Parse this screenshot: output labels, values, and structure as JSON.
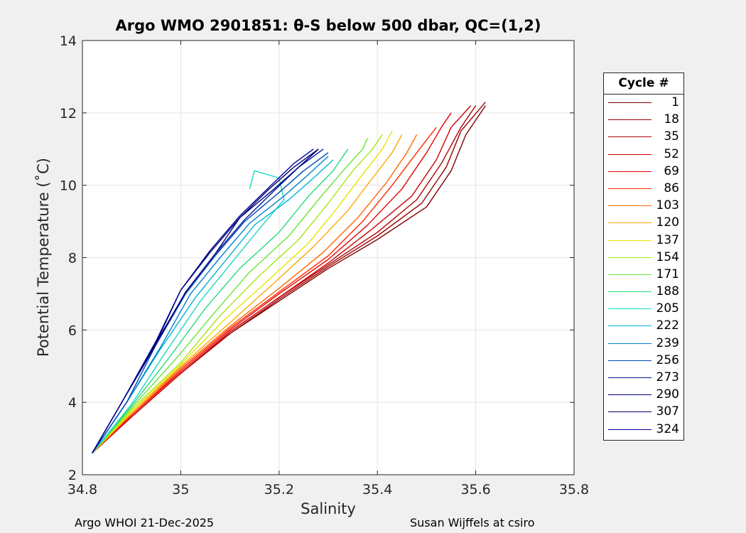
{
  "chart_data": {
    "type": "line",
    "title": "Argo WMO 2901851: θ-S below 500 dbar,  QC=(1,2)",
    "xlabel": "Salinity",
    "ylabel": "Potential Temperature (˚C)",
    "xlim": [
      34.8,
      35.8
    ],
    "ylim": [
      2,
      14
    ],
    "xticks": [
      34.8,
      35,
      35.2,
      35.4,
      35.6,
      35.8
    ],
    "xtick_labels": [
      "34.8",
      "35",
      "35.2",
      "35.4",
      "35.6",
      "35.8"
    ],
    "yticks": [
      2,
      4,
      6,
      8,
      10,
      12,
      14
    ],
    "ytick_labels": [
      "2",
      "4",
      "6",
      "8",
      "10",
      "12",
      "14"
    ],
    "grid": true,
    "legend_title": "Cycle #",
    "legend_position": "outside-right",
    "series": [
      {
        "name": "1",
        "color": "#800000",
        "points": [
          [
            34.82,
            2.6
          ],
          [
            34.9,
            3.6
          ],
          [
            35.0,
            4.8
          ],
          [
            35.1,
            5.9
          ],
          [
            35.2,
            6.8
          ],
          [
            35.3,
            7.7
          ],
          [
            35.4,
            8.5
          ],
          [
            35.5,
            9.4
          ],
          [
            35.55,
            10.4
          ],
          [
            35.58,
            11.4
          ],
          [
            35.62,
            12.2
          ]
        ]
      },
      {
        "name": "18",
        "color": "#990000",
        "points": [
          [
            34.82,
            2.6
          ],
          [
            34.9,
            3.6
          ],
          [
            35.0,
            4.8
          ],
          [
            35.1,
            5.9
          ],
          [
            35.2,
            6.85
          ],
          [
            35.3,
            7.75
          ],
          [
            35.4,
            8.6
          ],
          [
            35.49,
            9.5
          ],
          [
            35.54,
            10.5
          ],
          [
            35.57,
            11.5
          ],
          [
            35.62,
            12.3
          ]
        ]
      },
      {
        "name": "35",
        "color": "#b30000",
        "points": [
          [
            34.82,
            2.6
          ],
          [
            34.9,
            3.6
          ],
          [
            35.0,
            4.8
          ],
          [
            35.1,
            5.95
          ],
          [
            35.2,
            6.9
          ],
          [
            35.3,
            7.8
          ],
          [
            35.4,
            8.7
          ],
          [
            35.48,
            9.6
          ],
          [
            35.53,
            10.6
          ],
          [
            35.57,
            11.6
          ],
          [
            35.6,
            12.2
          ]
        ]
      },
      {
        "name": "52",
        "color": "#cc0000",
        "points": [
          [
            34.82,
            2.6
          ],
          [
            34.9,
            3.6
          ],
          [
            35.0,
            4.8
          ],
          [
            35.1,
            5.95
          ],
          [
            35.2,
            6.9
          ],
          [
            35.3,
            7.85
          ],
          [
            35.39,
            8.8
          ],
          [
            35.47,
            9.7
          ],
          [
            35.52,
            10.7
          ],
          [
            35.55,
            11.6
          ],
          [
            35.59,
            12.2
          ]
        ]
      },
      {
        "name": "69",
        "color": "#e60000",
        "points": [
          [
            34.82,
            2.6
          ],
          [
            34.9,
            3.65
          ],
          [
            35.0,
            4.85
          ],
          [
            35.1,
            6.0
          ],
          [
            35.2,
            7.0
          ],
          [
            35.3,
            7.95
          ],
          [
            35.38,
            8.9
          ],
          [
            35.45,
            9.9
          ],
          [
            35.5,
            10.9
          ],
          [
            35.53,
            11.6
          ],
          [
            35.55,
            12.0
          ]
        ]
      },
      {
        "name": "86",
        "color": "#ff2600",
        "points": [
          [
            34.82,
            2.6
          ],
          [
            34.9,
            3.65
          ],
          [
            35.0,
            4.9
          ],
          [
            35.1,
            6.05
          ],
          [
            35.2,
            7.05
          ],
          [
            35.3,
            8.05
          ],
          [
            35.37,
            9.0
          ],
          [
            35.43,
            10.0
          ],
          [
            35.48,
            10.9
          ],
          [
            35.52,
            11.6
          ]
        ]
      },
      {
        "name": "103",
        "color": "#ff6600",
        "points": [
          [
            34.82,
            2.6
          ],
          [
            34.9,
            3.7
          ],
          [
            35.0,
            4.95
          ],
          [
            35.1,
            6.1
          ],
          [
            35.2,
            7.15
          ],
          [
            35.29,
            8.15
          ],
          [
            35.36,
            9.1
          ],
          [
            35.42,
            10.1
          ],
          [
            35.46,
            10.9
          ],
          [
            35.48,
            11.4
          ]
        ]
      },
      {
        "name": "120",
        "color": "#ffa600",
        "points": [
          [
            34.82,
            2.6
          ],
          [
            34.9,
            3.7
          ],
          [
            35.0,
            5.0
          ],
          [
            35.1,
            6.2
          ],
          [
            35.19,
            7.3
          ],
          [
            35.27,
            8.3
          ],
          [
            35.34,
            9.3
          ],
          [
            35.39,
            10.2
          ],
          [
            35.43,
            10.9
          ],
          [
            35.45,
            11.4
          ]
        ]
      },
      {
        "name": "137",
        "color": "#e6e600",
        "points": [
          [
            34.82,
            2.6
          ],
          [
            34.9,
            3.75
          ],
          [
            35.0,
            5.05
          ],
          [
            35.09,
            6.3
          ],
          [
            35.18,
            7.4
          ],
          [
            35.26,
            8.4
          ],
          [
            35.32,
            9.4
          ],
          [
            35.37,
            10.3
          ],
          [
            35.41,
            11.0
          ],
          [
            35.43,
            11.5
          ]
        ]
      },
      {
        "name": "154",
        "color": "#a6e61a",
        "points": [
          [
            34.82,
            2.6
          ],
          [
            34.9,
            3.8
          ],
          [
            35.0,
            5.1
          ],
          [
            35.08,
            6.4
          ],
          [
            35.16,
            7.5
          ],
          [
            35.24,
            8.5
          ],
          [
            35.3,
            9.5
          ],
          [
            35.35,
            10.4
          ],
          [
            35.39,
            11.0
          ],
          [
            35.41,
            11.4
          ]
        ]
      },
      {
        "name": "171",
        "color": "#66e633",
        "points": [
          [
            34.82,
            2.6
          ],
          [
            34.9,
            3.85
          ],
          [
            34.99,
            5.2
          ],
          [
            35.07,
            6.5
          ],
          [
            35.14,
            7.6
          ],
          [
            35.22,
            8.6
          ],
          [
            35.28,
            9.6
          ],
          [
            35.33,
            10.4
          ],
          [
            35.37,
            11.0
          ],
          [
            35.38,
            11.3
          ]
        ]
      },
      {
        "name": "188",
        "color": "#26d980",
        "points": [
          [
            34.82,
            2.6
          ],
          [
            34.9,
            3.9
          ],
          [
            34.98,
            5.3
          ],
          [
            35.05,
            6.6
          ],
          [
            35.12,
            7.7
          ],
          [
            35.2,
            8.7
          ],
          [
            35.26,
            9.7
          ],
          [
            35.31,
            10.4
          ],
          [
            35.34,
            11.0
          ]
        ]
      },
      {
        "name": "205",
        "color": "#1ad9c0",
        "points": [
          [
            34.82,
            2.6
          ],
          [
            34.9,
            3.95
          ],
          [
            34.97,
            5.4
          ],
          [
            35.04,
            6.8
          ],
          [
            35.1,
            7.8
          ],
          [
            35.16,
            8.8
          ],
          [
            35.21,
            9.6
          ],
          [
            35.2,
            10.2
          ],
          [
            35.15,
            10.4
          ],
          [
            35.14,
            9.9
          ]
        ]
      },
      {
        "name": "222",
        "color": "#00b3d9",
        "points": [
          [
            34.82,
            2.6
          ],
          [
            34.89,
            4.0
          ],
          [
            34.96,
            5.5
          ],
          [
            35.03,
            6.9
          ],
          [
            35.09,
            7.9
          ],
          [
            35.15,
            8.9
          ],
          [
            35.22,
            9.6
          ],
          [
            35.27,
            10.2
          ],
          [
            35.31,
            10.7
          ]
        ]
      },
      {
        "name": "239",
        "color": "#0080cc",
        "points": [
          [
            34.82,
            2.6
          ],
          [
            34.89,
            4.0
          ],
          [
            34.96,
            5.55
          ],
          [
            35.02,
            7.0
          ],
          [
            35.08,
            8.0
          ],
          [
            35.14,
            8.95
          ],
          [
            35.21,
            9.7
          ],
          [
            35.26,
            10.3
          ],
          [
            35.3,
            10.8
          ]
        ]
      },
      {
        "name": "256",
        "color": "#0047b3",
        "points": [
          [
            34.82,
            2.6
          ],
          [
            34.89,
            4.0
          ],
          [
            34.95,
            5.6
          ],
          [
            35.01,
            7.0
          ],
          [
            35.07,
            8.05
          ],
          [
            35.13,
            9.0
          ],
          [
            35.2,
            9.8
          ],
          [
            35.25,
            10.4
          ],
          [
            35.3,
            10.9
          ]
        ]
      },
      {
        "name": "273",
        "color": "#001a99",
        "points": [
          [
            34.82,
            2.6
          ],
          [
            34.88,
            4.0
          ],
          [
            34.95,
            5.6
          ],
          [
            35.01,
            7.05
          ],
          [
            35.07,
            8.1
          ],
          [
            35.13,
            9.05
          ],
          [
            35.19,
            9.85
          ],
          [
            35.24,
            10.5
          ],
          [
            35.29,
            11.0
          ]
        ]
      },
      {
        "name": "290",
        "color": "#000080",
        "points": [
          [
            34.82,
            2.6
          ],
          [
            34.88,
            4.0
          ],
          [
            34.95,
            5.65
          ],
          [
            35.01,
            7.05
          ],
          [
            35.07,
            8.1
          ],
          [
            35.12,
            9.1
          ],
          [
            35.19,
            9.9
          ],
          [
            35.24,
            10.5
          ],
          [
            35.28,
            11.0
          ]
        ]
      },
      {
        "name": "307",
        "color": "#000066",
        "points": [
          [
            34.82,
            2.6
          ],
          [
            34.88,
            4.0
          ],
          [
            34.95,
            5.65
          ],
          [
            35.0,
            7.1
          ],
          [
            35.06,
            8.15
          ],
          [
            35.12,
            9.1
          ],
          [
            35.18,
            9.9
          ],
          [
            35.23,
            10.5
          ],
          [
            35.28,
            11.0
          ]
        ]
      },
      {
        "name": "324",
        "color": "#000099",
        "points": [
          [
            34.82,
            2.6
          ],
          [
            34.88,
            4.0
          ],
          [
            34.95,
            5.7
          ],
          [
            35.0,
            7.1
          ],
          [
            35.06,
            8.2
          ],
          [
            35.12,
            9.15
          ],
          [
            35.18,
            9.95
          ],
          [
            35.23,
            10.6
          ],
          [
            35.27,
            11.0
          ]
        ]
      }
    ]
  },
  "footer_left": "Argo WHOI 21-Dec-2025",
  "footer_right": "Susan Wijffels at csiro"
}
